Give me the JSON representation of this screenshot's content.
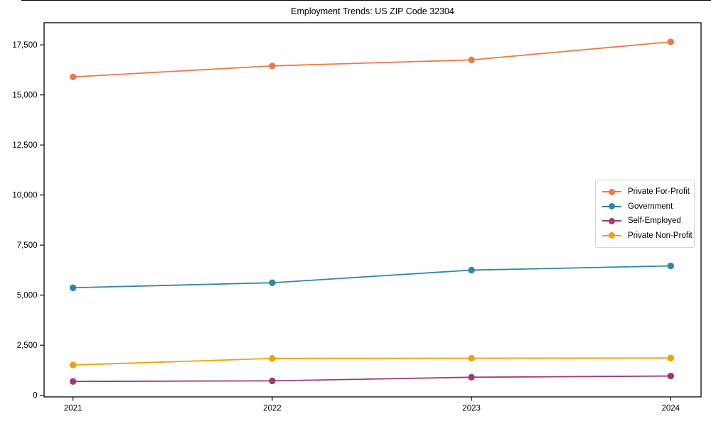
{
  "chart_data": {
    "type": "line",
    "title": "Employment Trends: US ZIP Code 32304",
    "xlabel": "",
    "ylabel": "",
    "categories": [
      "2021",
      "2022",
      "2023",
      "2024"
    ],
    "series": [
      {
        "name": "Private For-Profit",
        "color": "#EC7A45",
        "values": [
          15900,
          16450,
          16750,
          17650
        ]
      },
      {
        "name": "Government",
        "color": "#2E86AB",
        "values": [
          5370,
          5620,
          6250,
          6460
        ]
      },
      {
        "name": "Self-Employed",
        "color": "#A23B72",
        "values": [
          690,
          720,
          900,
          960
        ]
      },
      {
        "name": "Private Non-Profit",
        "color": "#F2A007",
        "values": [
          1510,
          1840,
          1850,
          1860
        ]
      }
    ],
    "ylim": [
      0,
      18600
    ],
    "yticks": [
      0,
      2500,
      5000,
      7500,
      10000,
      12500,
      15000,
      17500
    ],
    "ytick_labels": [
      "0",
      "2,500",
      "5,000",
      "7,500",
      "10,000",
      "12,500",
      "15,000",
      "17,500"
    ],
    "grid": false,
    "marker": "circle",
    "legend_position": "center-right"
  }
}
